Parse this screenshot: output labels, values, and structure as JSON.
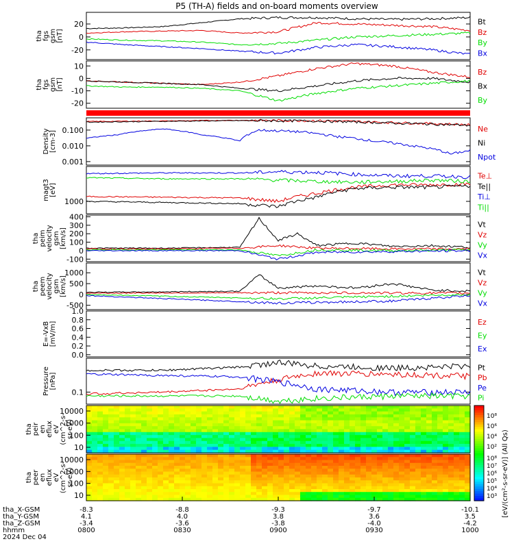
{
  "title": "P5 (TH-A) fields and on-board moments overview",
  "colors": {
    "black": "#000000",
    "red": "#e00000",
    "green": "#00dd00",
    "blue": "#0000e0",
    "strip": "#ff0000"
  },
  "chart_data": [
    {
      "id": "fgs-gsm",
      "type": "line",
      "ylabel": [
        "tha",
        "fgs",
        "gsm",
        "[nT]"
      ],
      "ylim": [
        -35,
        38
      ],
      "yticks": [
        20,
        0,
        -20
      ],
      "series": [
        {
          "name": "Bt",
          "color": "black",
          "x": [
            0,
            0.1,
            0.2,
            0.3,
            0.4,
            0.5,
            0.6,
            0.7,
            0.8,
            0.9,
            1.0
          ],
          "values": [
            13,
            14,
            16,
            22,
            28,
            30,
            30,
            28,
            27,
            28,
            30
          ]
        },
        {
          "name": "Bz",
          "color": "red",
          "x": [
            0,
            0.1,
            0.2,
            0.3,
            0.4,
            0.5,
            0.6,
            0.7,
            0.8,
            0.9,
            1.0
          ],
          "values": [
            6,
            8,
            9,
            10,
            6,
            8,
            22,
            20,
            18,
            16,
            10
          ]
        },
        {
          "name": "By",
          "color": "green",
          "x": [
            0,
            0.1,
            0.2,
            0.3,
            0.4,
            0.5,
            0.6,
            0.7,
            0.8,
            0.9,
            1.0
          ],
          "values": [
            -3,
            -5,
            -6,
            -8,
            -12,
            -10,
            -5,
            0,
            2,
            4,
            6
          ]
        },
        {
          "name": "Bx",
          "color": "blue",
          "x": [
            0,
            0.1,
            0.2,
            0.3,
            0.4,
            0.5,
            0.6,
            0.7,
            0.8,
            0.9,
            1.0
          ],
          "values": [
            -8,
            -12,
            -15,
            -18,
            -22,
            -25,
            -16,
            -12,
            -15,
            -20,
            -27
          ]
        }
      ]
    },
    {
      "id": "fgs-gsm-components",
      "type": "line",
      "ylabel": [
        "tha",
        "fgs",
        "gsm",
        "[nT]"
      ],
      "ylim": [
        -24,
        14
      ],
      "yticks": [
        10,
        0,
        -10,
        -20
      ],
      "series": [
        {
          "name": "Bz",
          "color": "red",
          "x": [
            0,
            0.1,
            0.2,
            0.3,
            0.4,
            0.5,
            0.6,
            0.7,
            0.8,
            0.9,
            1.0
          ],
          "values": [
            -2,
            -3,
            -4,
            -5,
            -3,
            2,
            8,
            12,
            10,
            5,
            1
          ]
        },
        {
          "name": "Bx",
          "color": "black",
          "x": [
            0,
            0.1,
            0.2,
            0.3,
            0.4,
            0.5,
            0.6,
            0.7,
            0.8,
            0.9,
            1.0
          ],
          "values": [
            -2,
            -3,
            -4,
            -5,
            -8,
            -10,
            -6,
            -2,
            0,
            0,
            -3
          ]
        },
        {
          "name": "By",
          "color": "green",
          "x": [
            0,
            0.1,
            0.2,
            0.3,
            0.4,
            0.5,
            0.6,
            0.7,
            0.8,
            0.9,
            1.0
          ],
          "values": [
            -6,
            -7,
            -7,
            -8,
            -10,
            -18,
            -12,
            -8,
            -6,
            -4,
            -2
          ]
        }
      ]
    },
    {
      "id": "density",
      "type": "line",
      "scale": "log",
      "ylabel": [
        "Density",
        "[cm-3]"
      ],
      "ylim": [
        0.0006,
        0.6
      ],
      "yticks": [
        0.1,
        0.01,
        0.001
      ],
      "ytick_labels": [
        "0.100",
        "0.010",
        "0.001"
      ],
      "series": [
        {
          "name": "Ne",
          "color": "red",
          "x": [
            0,
            0.2,
            0.4,
            0.6,
            0.8,
            1.0
          ],
          "values": [
            0.35,
            0.38,
            0.42,
            0.4,
            0.3,
            0.22
          ]
        },
        {
          "name": "Ni",
          "color": "black",
          "x": [
            0,
            0.2,
            0.4,
            0.6,
            0.8,
            1.0
          ],
          "values": [
            0.32,
            0.36,
            0.4,
            0.38,
            0.28,
            0.2
          ]
        },
        {
          "name": "Npot",
          "color": "blue",
          "x": [
            0,
            0.08,
            0.2,
            0.3,
            0.4,
            0.45,
            0.55,
            0.65,
            0.75,
            0.85,
            0.95,
            1.0
          ],
          "values": [
            0.03,
            0.05,
            0.12,
            0.05,
            0.02,
            0.1,
            0.08,
            0.04,
            0.02,
            0.01,
            0.003,
            0.005
          ]
        }
      ]
    },
    {
      "id": "moments-t3",
      "type": "line",
      "scale": "log",
      "ylabel": [
        "magt3",
        "[eV]"
      ],
      "ylim": [
        300,
        30000
      ],
      "yticks": [
        1000
      ],
      "ytick_labels": [
        "1000"
      ],
      "series": [
        {
          "name": "Te⊥",
          "color": "red",
          "x": [
            0,
            0.2,
            0.4,
            0.5,
            0.6,
            0.7,
            0.8,
            0.9,
            1.0
          ],
          "values": [
            1600,
            1500,
            1400,
            1000,
            2200,
            4000,
            5000,
            5000,
            5500
          ]
        },
        {
          "name": "Te||",
          "color": "black",
          "x": [
            0,
            0.2,
            0.4,
            0.5,
            0.6,
            0.7,
            0.8,
            0.9,
            1.0
          ],
          "values": [
            1000,
            900,
            800,
            600,
            1500,
            3500,
            4000,
            4000,
            4500
          ]
        },
        {
          "name": "Ti⊥",
          "color": "blue",
          "x": [
            0,
            0.2,
            0.4,
            0.5,
            0.6,
            0.7,
            0.8,
            0.9,
            1.0
          ],
          "values": [
            15000,
            16000,
            16000,
            18000,
            17000,
            14000,
            12000,
            12000,
            11000
          ]
        },
        {
          "name": "Ti||",
          "color": "green",
          "x": [
            0,
            0.2,
            0.4,
            0.5,
            0.6,
            0.7,
            0.8,
            0.9,
            1.0
          ],
          "values": [
            10000,
            9000,
            9000,
            8000,
            7000,
            6500,
            7000,
            8000,
            7000
          ]
        }
      ]
    },
    {
      "id": "peim-velocity",
      "type": "line",
      "ylabel": [
        "tha",
        "peim",
        "velocity",
        "gsm",
        "[km/s]"
      ],
      "ylim": [
        -130,
        420
      ],
      "yticks": [
        400,
        300,
        200,
        100,
        0,
        -100
      ],
      "series": [
        {
          "name": "Vt",
          "color": "black",
          "x": [
            0,
            0.2,
            0.4,
            0.45,
            0.5,
            0.55,
            0.6,
            0.7,
            0.8,
            0.9,
            1.0
          ],
          "values": [
            30,
            30,
            40,
            380,
            120,
            200,
            60,
            90,
            50,
            60,
            40
          ]
        },
        {
          "name": "Vz",
          "color": "red",
          "x": [
            0,
            0.2,
            0.4,
            0.5,
            0.6,
            0.8,
            1.0
          ],
          "values": [
            20,
            20,
            30,
            60,
            30,
            20,
            20
          ]
        },
        {
          "name": "Vy",
          "color": "green",
          "x": [
            0,
            0.2,
            0.4,
            0.5,
            0.6,
            0.8,
            1.0
          ],
          "values": [
            10,
            10,
            10,
            -60,
            10,
            0,
            10
          ]
        },
        {
          "name": "Vx",
          "color": "blue",
          "x": [
            0,
            0.2,
            0.4,
            0.5,
            0.6,
            0.8,
            1.0
          ],
          "values": [
            0,
            0,
            0,
            -100,
            -20,
            -10,
            0
          ]
        }
      ]
    },
    {
      "id": "peem-velocity",
      "type": "line",
      "ylabel": [
        "tha",
        "peem",
        "velocity",
        "gsm",
        "[km/s]"
      ],
      "ylim": [
        -700,
        1450
      ],
      "yticks": [
        1000,
        500,
        0,
        -500
      ],
      "ytick_labels": [
        "1000",
        "500",
        "0",
        "-500"
      ],
      "series": [
        {
          "name": "Vt",
          "color": "black",
          "x": [
            0,
            0.2,
            0.4,
            0.45,
            0.5,
            0.6,
            0.7,
            0.8,
            0.9,
            1.0
          ],
          "values": [
            100,
            120,
            150,
            900,
            300,
            400,
            300,
            500,
            200,
            150
          ]
        },
        {
          "name": "Vz",
          "color": "red",
          "x": [
            0,
            0.5,
            1.0
          ],
          "values": [
            60,
            80,
            60
          ]
        },
        {
          "name": "Vy",
          "color": "green",
          "x": [
            0,
            0.5,
            1.0
          ],
          "values": [
            0,
            -200,
            0
          ]
        },
        {
          "name": "Vx",
          "color": "blue",
          "x": [
            0,
            0.5,
            0.8,
            1.0
          ],
          "values": [
            -50,
            -400,
            -300,
            -50
          ]
        }
      ]
    },
    {
      "id": "efield",
      "type": "line",
      "ylabel": [
        "E=-VxB",
        "[mV/m]"
      ],
      "ylim": [
        -0.05,
        1.0
      ],
      "yticks": [
        1.0,
        0.8,
        0.6,
        0.4,
        0.2,
        0.0
      ],
      "ytick_labels": [
        "1.0",
        "0.8",
        "0.6",
        "0.4",
        "0.2",
        "0.0"
      ],
      "series": [
        {
          "name": "Ez",
          "color": "red",
          "x": [],
          "values": []
        },
        {
          "name": "Ey",
          "color": "green",
          "x": [],
          "values": []
        },
        {
          "name": "Ex",
          "color": "blue",
          "x": [],
          "values": []
        }
      ]
    },
    {
      "id": "pressure",
      "type": "line",
      "scale": "log",
      "ylabel": [
        "Pressure",
        "[nPa]"
      ],
      "ylim": [
        0.05,
        0.7
      ],
      "yticks": [
        0.1
      ],
      "ytick_labels": [
        "0.1"
      ],
      "series": [
        {
          "name": "Pt",
          "color": "black",
          "x": [
            0,
            0.2,
            0.4,
            0.5,
            0.6,
            0.8,
            1.0
          ],
          "values": [
            0.35,
            0.35,
            0.42,
            0.55,
            0.45,
            0.4,
            0.45
          ]
        },
        {
          "name": "Pb",
          "color": "red",
          "x": [
            0,
            0.2,
            0.4,
            0.5,
            0.6,
            0.8,
            1.0
          ],
          "values": [
            0.09,
            0.1,
            0.12,
            0.2,
            0.3,
            0.28,
            0.25
          ]
        },
        {
          "name": "Pe",
          "color": "blue",
          "x": [
            0,
            0.2,
            0.4,
            0.5,
            0.6,
            0.8,
            1.0
          ],
          "values": [
            0.28,
            0.26,
            0.24,
            0.18,
            0.12,
            0.1,
            0.1
          ]
        },
        {
          "name": "Pi",
          "color": "green",
          "x": [
            0,
            0.2,
            0.4,
            0.5,
            0.6,
            0.8,
            1.0
          ],
          "values": [
            0.08,
            0.08,
            0.08,
            0.06,
            0.07,
            0.08,
            0.08
          ]
        }
      ]
    },
    {
      "id": "peir-spectrogram",
      "type": "heatmap",
      "scale": "log",
      "ylabel": [
        "tha",
        "peir",
        "en",
        "eflux",
        "eV",
        "(cm^2-s-",
        "sr-eV)"
      ],
      "yticks": [
        10000,
        1000,
        100,
        10
      ],
      "ytick_labels": [
        "10000",
        "1000",
        "100",
        "10"
      ]
    },
    {
      "id": "peer-spectrogram",
      "type": "heatmap",
      "scale": "log",
      "ylabel": [
        "tha",
        "peer",
        "en",
        "eflux",
        "eV",
        "(cm^2-s-",
        "sr-eV)"
      ],
      "yticks": [
        10000,
        1000,
        100,
        10
      ],
      "ytick_labels": [
        "10000",
        "1000",
        "100",
        "10"
      ]
    }
  ],
  "colorbar": {
    "ticks_top": [
      "10⁸",
      "10⁶",
      "10⁴",
      "10²"
    ],
    "ticks_bottom": [
      "10⁸",
      "10⁷",
      "10⁶",
      "10⁵",
      "10⁴",
      "10³"
    ],
    "label": "[eV/(cm²-s-sr-eV)] (All Qs)"
  },
  "x_axis": {
    "rows": [
      {
        "label": "tha_X-GSM",
        "values": [
          "-8.3",
          "-8.8",
          "-9.3",
          "-9.7",
          "-10.1"
        ]
      },
      {
        "label": "tha_Y-GSM",
        "values": [
          "4.1",
          "4.0",
          "3.8",
          "3.6",
          "3.5"
        ]
      },
      {
        "label": "tha_Z-GSM",
        "values": [
          "-3.4",
          "-3.6",
          "-3.8",
          "-4.0",
          "-4.2"
        ]
      },
      {
        "label": "hhmm",
        "values": [
          "0800",
          "0830",
          "0900",
          "0930",
          "1000"
        ]
      }
    ],
    "date": "2024 Dec 04"
  }
}
